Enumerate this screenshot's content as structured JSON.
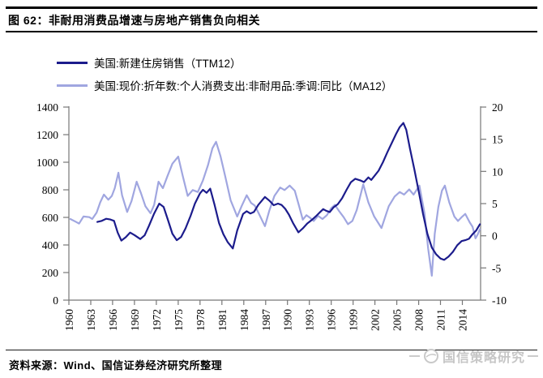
{
  "header": {
    "title": "图 62：非耐用消费品增速与房地产销售负向相关"
  },
  "legend": [
    {
      "label": "美国:新建住房销售（TTM12）",
      "color": "#1c1c8c"
    },
    {
      "label": "美国:现价:折年数:个人消费支出:非耐用品:季调:同比（MA12）",
      "color": "#a0a6e0"
    }
  ],
  "footer": {
    "source": "资料来源：Wind、国信证券经济研究所整理",
    "watermark": "国信策略研究"
  },
  "colors": {
    "axis": "#777777",
    "navy": "#1c1c8c",
    "purple": "#a0a6e0",
    "watermark": "#c6c6c6"
  },
  "chart_data": {
    "type": "line",
    "title": "非耐用消费品增速与房地产销售负向相关",
    "grid": false,
    "legend_position": "top-left",
    "x_axis": {
      "min": 1960,
      "max": 2016.5,
      "ticks": [
        1960,
        1963,
        1966,
        1969,
        1972,
        1975,
        1978,
        1981,
        1984,
        1987,
        1990,
        1993,
        1996,
        1999,
        2002,
        2005,
        2008,
        2011,
        2014
      ]
    },
    "y_left": {
      "min": 0,
      "max": 1400,
      "ticks": [
        0,
        200,
        400,
        600,
        800,
        1000,
        1200,
        1400
      ]
    },
    "y_right": {
      "min": -10,
      "max": 20,
      "ticks": [
        -10,
        -5,
        0,
        5,
        10,
        15,
        20
      ]
    },
    "series": [
      {
        "name": "美国:现价:折年数:个人消费支出:非耐用品:季调:同比（MA12）",
        "axis": "right",
        "color": "#a0a6e0",
        "points": [
          [
            1960.2,
            2.6
          ],
          [
            1960.9,
            2.2
          ],
          [
            1961.4,
            1.9
          ],
          [
            1962.0,
            3.0
          ],
          [
            1962.8,
            2.9
          ],
          [
            1963.2,
            2.6
          ],
          [
            1963.8,
            3.6
          ],
          [
            1964.3,
            5.2
          ],
          [
            1964.8,
            6.4
          ],
          [
            1965.4,
            5.6
          ],
          [
            1965.9,
            6.2
          ],
          [
            1966.3,
            7.4
          ],
          [
            1966.8,
            9.8
          ],
          [
            1967.3,
            6.3
          ],
          [
            1968.0,
            3.7
          ],
          [
            1968.6,
            5.4
          ],
          [
            1969.3,
            8.4
          ],
          [
            1969.9,
            6.6
          ],
          [
            1970.5,
            4.6
          ],
          [
            1971.2,
            3.5
          ],
          [
            1971.7,
            4.8
          ],
          [
            1972.3,
            8.4
          ],
          [
            1972.9,
            7.4
          ],
          [
            1973.5,
            9.2
          ],
          [
            1974.2,
            11.2
          ],
          [
            1975.0,
            12.3
          ],
          [
            1975.6,
            9.4
          ],
          [
            1976.3,
            6.2
          ],
          [
            1977.0,
            7.1
          ],
          [
            1977.7,
            6.8
          ],
          [
            1978.4,
            8.6
          ],
          [
            1979.1,
            11.0
          ],
          [
            1979.7,
            13.6
          ],
          [
            1980.2,
            14.6
          ],
          [
            1980.8,
            12.4
          ],
          [
            1981.4,
            9.5
          ],
          [
            1982.2,
            5.5
          ],
          [
            1983.1,
            3.0
          ],
          [
            1983.7,
            4.6
          ],
          [
            1984.4,
            6.3
          ],
          [
            1985.0,
            5.1
          ],
          [
            1985.5,
            4.7
          ],
          [
            1986.0,
            3.6
          ],
          [
            1986.9,
            1.5
          ],
          [
            1987.5,
            3.9
          ],
          [
            1988.2,
            6.2
          ],
          [
            1989.0,
            7.5
          ],
          [
            1989.6,
            7.1
          ],
          [
            1990.3,
            7.8
          ],
          [
            1991.0,
            7.0
          ],
          [
            1991.6,
            4.6
          ],
          [
            1992.1,
            2.5
          ],
          [
            1992.6,
            3.2
          ],
          [
            1993.1,
            2.8
          ],
          [
            1993.6,
            2.3
          ],
          [
            1994.2,
            3.1
          ],
          [
            1994.8,
            2.6
          ],
          [
            1995.4,
            3.2
          ],
          [
            1996.0,
            4.3
          ],
          [
            1996.5,
            4.8
          ],
          [
            1997.1,
            3.8
          ],
          [
            1997.7,
            2.9
          ],
          [
            1998.3,
            1.8
          ],
          [
            1998.9,
            2.3
          ],
          [
            1999.5,
            4.0
          ],
          [
            2000.4,
            8.0
          ],
          [
            2001.1,
            5.2
          ],
          [
            2001.9,
            3.0
          ],
          [
            2002.9,
            1.2
          ],
          [
            2003.9,
            4.6
          ],
          [
            2004.7,
            6.1
          ],
          [
            2005.4,
            6.8
          ],
          [
            2006.0,
            6.4
          ],
          [
            2006.7,
            7.2
          ],
          [
            2007.3,
            6.4
          ],
          [
            2008.1,
            7.8
          ],
          [
            2008.8,
            3.5
          ],
          [
            2009.3,
            -2.0
          ],
          [
            2009.8,
            -6.2
          ],
          [
            2010.2,
            0.3
          ],
          [
            2010.7,
            4.5
          ],
          [
            2011.2,
            7.0
          ],
          [
            2011.6,
            7.8
          ],
          [
            2012.2,
            5.2
          ],
          [
            2012.9,
            3.0
          ],
          [
            2013.4,
            2.3
          ],
          [
            2014.0,
            3.0
          ],
          [
            2014.4,
            3.4
          ],
          [
            2015.0,
            2.1
          ],
          [
            2015.4,
            1.4
          ],
          [
            2015.8,
            -0.4
          ],
          [
            2016.1,
            0.2
          ],
          [
            2016.4,
            1.0
          ]
        ]
      },
      {
        "name": "美国:新建住房销售（TTM12）",
        "axis": "left",
        "color": "#1c1c8c",
        "points": [
          [
            1963.9,
            567
          ],
          [
            1964.5,
            575
          ],
          [
            1965.1,
            590
          ],
          [
            1965.7,
            585
          ],
          [
            1966.2,
            575
          ],
          [
            1966.7,
            490
          ],
          [
            1967.2,
            432
          ],
          [
            1967.8,
            456
          ],
          [
            1968.4,
            490
          ],
          [
            1969.0,
            472
          ],
          [
            1969.8,
            443
          ],
          [
            1970.4,
            470
          ],
          [
            1971.0,
            540
          ],
          [
            1971.7,
            628
          ],
          [
            1972.4,
            700
          ],
          [
            1973.0,
            676
          ],
          [
            1973.6,
            580
          ],
          [
            1974.2,
            482
          ],
          [
            1974.8,
            435
          ],
          [
            1975.4,
            458
          ],
          [
            1976.0,
            520
          ],
          [
            1976.7,
            612
          ],
          [
            1977.3,
            700
          ],
          [
            1978.0,
            775
          ],
          [
            1978.4,
            800
          ],
          [
            1978.9,
            778
          ],
          [
            1979.4,
            808
          ],
          [
            1980.0,
            690
          ],
          [
            1980.6,
            560
          ],
          [
            1981.2,
            478
          ],
          [
            1981.8,
            420
          ],
          [
            1982.5,
            375
          ],
          [
            1983.1,
            505
          ],
          [
            1983.9,
            625
          ],
          [
            1984.4,
            645
          ],
          [
            1984.9,
            628
          ],
          [
            1985.4,
            640
          ],
          [
            1986.0,
            692
          ],
          [
            1986.9,
            748
          ],
          [
            1987.5,
            722
          ],
          [
            1988.1,
            688
          ],
          [
            1988.7,
            700
          ],
          [
            1989.2,
            690
          ],
          [
            1989.7,
            662
          ],
          [
            1990.2,
            620
          ],
          [
            1990.8,
            555
          ],
          [
            1991.5,
            492
          ],
          [
            1992.1,
            520
          ],
          [
            1992.7,
            555
          ],
          [
            1993.3,
            580
          ],
          [
            1993.9,
            608
          ],
          [
            1994.4,
            635
          ],
          [
            1994.9,
            660
          ],
          [
            1995.3,
            648
          ],
          [
            1995.8,
            638
          ],
          [
            1996.3,
            672
          ],
          [
            1996.9,
            695
          ],
          [
            1997.5,
            740
          ],
          [
            1998.1,
            800
          ],
          [
            1998.7,
            855
          ],
          [
            1999.3,
            880
          ],
          [
            2000.0,
            868
          ],
          [
            2000.5,
            856
          ],
          [
            2001.1,
            890
          ],
          [
            2001.5,
            872
          ],
          [
            2002.0,
            905
          ],
          [
            2002.5,
            938
          ],
          [
            2003.1,
            1000
          ],
          [
            2003.7,
            1072
          ],
          [
            2004.3,
            1138
          ],
          [
            2004.9,
            1205
          ],
          [
            2005.4,
            1255
          ],
          [
            2005.9,
            1285
          ],
          [
            2006.3,
            1235
          ],
          [
            2006.8,
            1100
          ],
          [
            2007.4,
            950
          ],
          [
            2008.0,
            790
          ],
          [
            2008.6,
            625
          ],
          [
            2009.2,
            480
          ],
          [
            2009.8,
            382
          ],
          [
            2010.4,
            332
          ],
          [
            2011.0,
            302
          ],
          [
            2011.5,
            292
          ],
          [
            2012.1,
            315
          ],
          [
            2012.7,
            350
          ],
          [
            2013.3,
            398
          ],
          [
            2013.9,
            428
          ],
          [
            2014.4,
            435
          ],
          [
            2014.9,
            445
          ],
          [
            2015.4,
            478
          ],
          [
            2015.9,
            505
          ],
          [
            2016.4,
            550
          ]
        ]
      }
    ]
  }
}
